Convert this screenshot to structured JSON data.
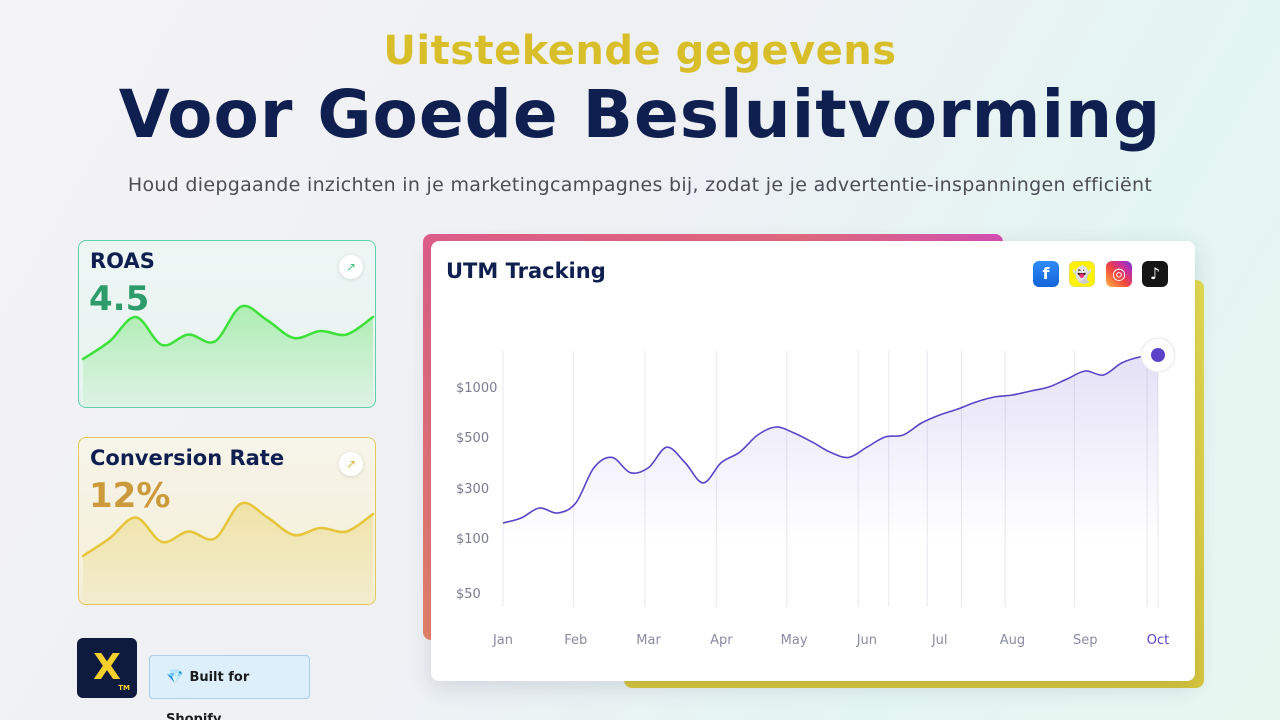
{
  "header": {
    "kicker": "Uitstekende gegevens",
    "headline": "Voor Goede Besluitvorming",
    "subline": "Houd diepgaande inzichten in je marketingcampagnes bij, zodat je je advertentie-inspanningen efficiënt"
  },
  "metrics": [
    {
      "title": "ROAS",
      "value": "4.5",
      "accent": "#3ee03a",
      "trend": [
        0.1,
        0.35,
        0.7,
        0.3,
        0.45,
        0.35,
        0.85,
        0.65,
        0.4,
        0.5,
        0.45,
        0.7
      ]
    },
    {
      "title": "Conversion Rate",
      "value": "12%",
      "accent": "#e6c53a",
      "trend": [
        0.1,
        0.35,
        0.65,
        0.3,
        0.45,
        0.35,
        0.85,
        0.65,
        0.4,
        0.5,
        0.45,
        0.7
      ]
    }
  ],
  "utm": {
    "title": "UTM Tracking",
    "social_icons": [
      "facebook-icon",
      "snapchat-icon",
      "instagram-icon",
      "tiktok-icon"
    ],
    "social_glyphs": [
      "f",
      "👻",
      "◎",
      "♪"
    ]
  },
  "chart_data": {
    "type": "area",
    "title": "UTM Tracking",
    "xlabel": "",
    "ylabel": "",
    "categories": [
      "Jan",
      "Feb",
      "Mar",
      "Apr",
      "May",
      "Jun",
      "Jul",
      "Aug",
      "Sep",
      "Oct"
    ],
    "y_ticks": [
      "$1000",
      "$500",
      "$300",
      "$100",
      "$50"
    ],
    "y_tick_levels": [
      1000,
      500,
      300,
      100,
      50
    ],
    "x": [
      0,
      0.25,
      0.5,
      0.75,
      1.0,
      1.25,
      1.5,
      1.75,
      2.0,
      2.25,
      2.5,
      2.75,
      3.0,
      3.25,
      3.5,
      3.75,
      4.0,
      4.25,
      4.5,
      4.75,
      5.0,
      5.25,
      5.5,
      5.75,
      6.0,
      6.25,
      6.5,
      6.75,
      7.0,
      7.25,
      7.5,
      7.75,
      8.0,
      8.25,
      8.5,
      8.75,
      9.0
    ],
    "values": [
      160,
      180,
      220,
      200,
      240,
      380,
      420,
      360,
      380,
      460,
      400,
      320,
      400,
      440,
      520,
      600,
      540,
      480,
      440,
      420,
      460,
      500,
      520,
      640,
      720,
      780,
      850,
      900,
      920,
      960,
      1000,
      1080,
      1160,
      1120,
      1240,
      1300,
      1320
    ],
    "highlight_index": 9,
    "series_color": "#5b43c9",
    "grid": true,
    "gridlines": "vertical"
  },
  "branding": {
    "logo_text": "X",
    "logo_tm": "TM",
    "badge_icon": "gem-icon",
    "badge_glyph": "💎",
    "badge_label": "Built for Shopify"
  }
}
